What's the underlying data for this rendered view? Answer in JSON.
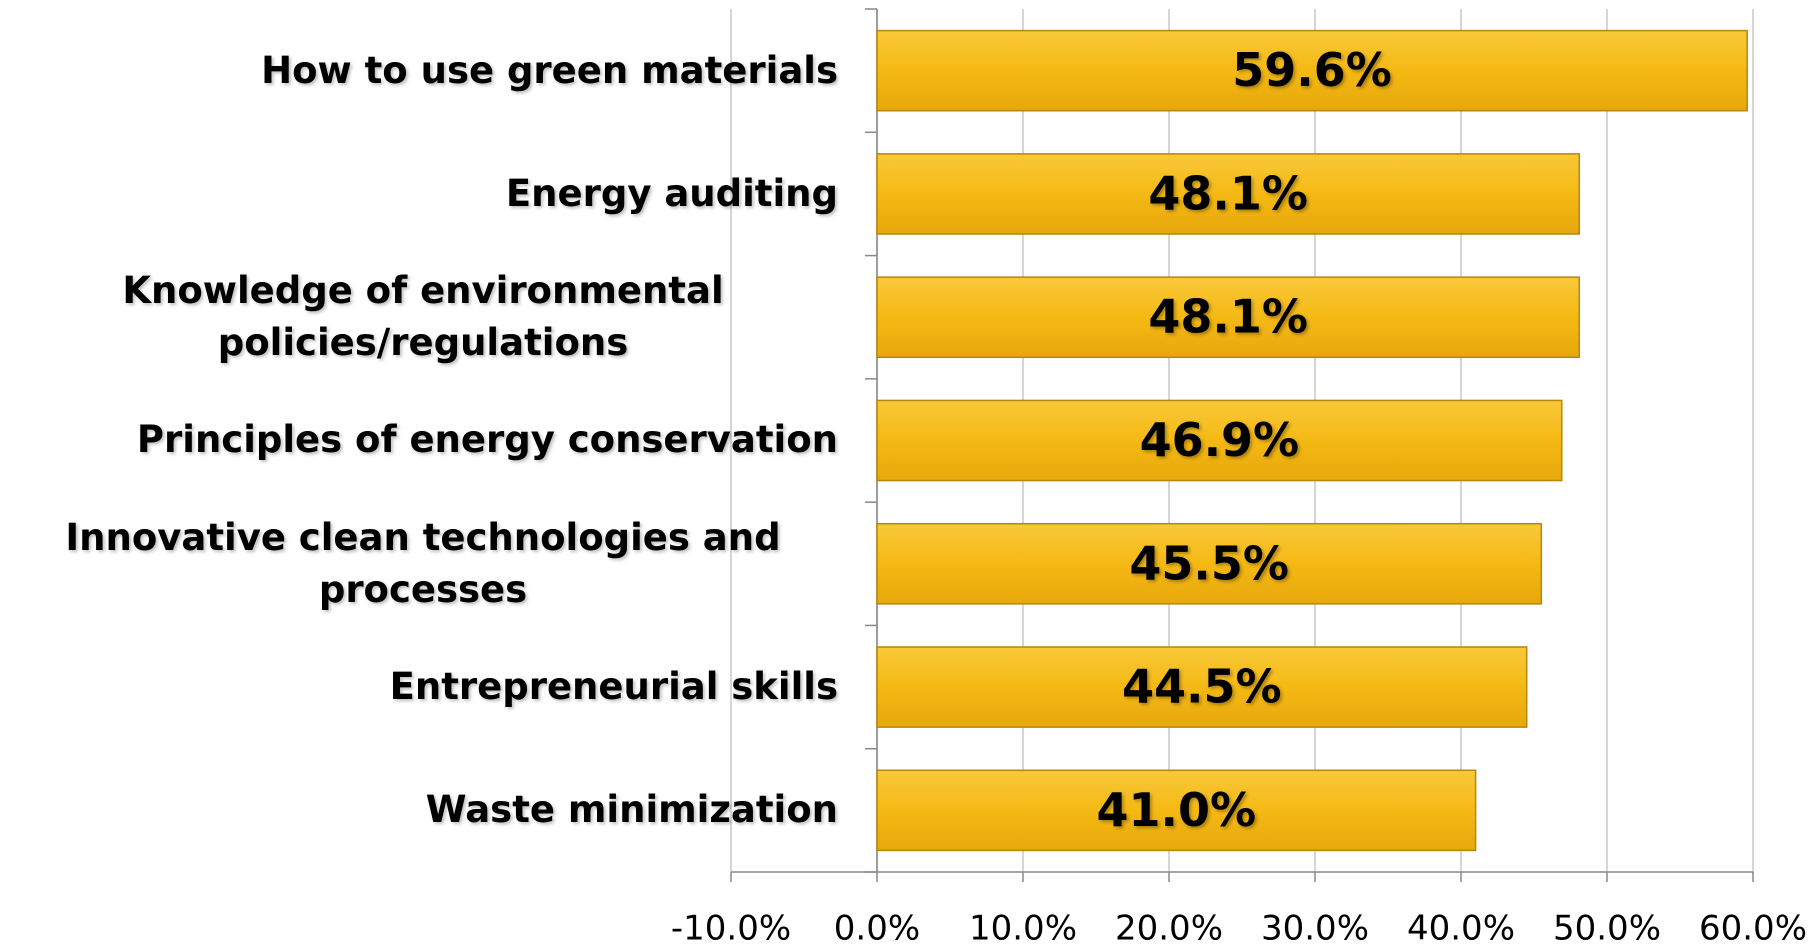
{
  "chart_data": {
    "type": "bar",
    "orientation": "horizontal",
    "categories": [
      "How to use green materials",
      "Energy auditing",
      "Knowledge of environmental policies/regulations",
      "Principles of energy conservation",
      "Innovative clean technologies and processes",
      "Entrepreneurial skills",
      "Waste minimization"
    ],
    "values": [
      59.6,
      48.1,
      48.1,
      46.9,
      45.5,
      44.5,
      41.0
    ],
    "value_labels": [
      "59.6%",
      "48.1%",
      "48.1%",
      "46.9%",
      "45.5%",
      "44.5%",
      "41.0%"
    ],
    "color": "#f5b914",
    "xlim": [
      -10,
      60
    ],
    "xticks": [
      {
        "value": -10,
        "label": "-10.0%"
      },
      {
        "value": 0,
        "label": "0.0%"
      },
      {
        "value": 10,
        "label": "10.0%"
      },
      {
        "value": 20,
        "label": "20.0%"
      },
      {
        "value": 30,
        "label": "30.0%"
      },
      {
        "value": 40,
        "label": "40.0%"
      },
      {
        "value": 50,
        "label": "50.0%"
      },
      {
        "value": 60,
        "label": "60.0%"
      }
    ],
    "grid": true
  }
}
